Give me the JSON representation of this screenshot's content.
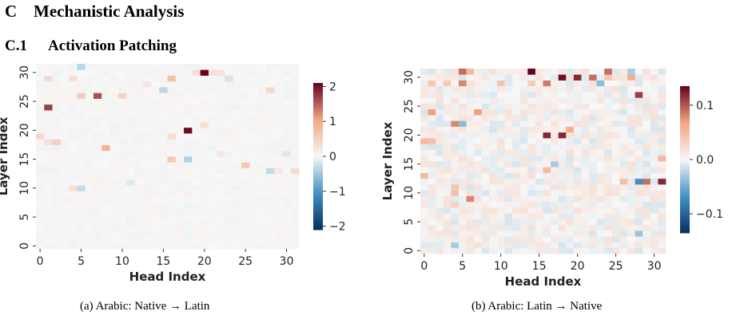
{
  "section": {
    "number": "C",
    "title": "Mechanistic Analysis"
  },
  "subsection": {
    "number": "C.1",
    "title": "Activation Patching"
  },
  "colors": {
    "neg_max": "#053061",
    "neg_mid": "#4393c3",
    "zero": "#f7f7f7",
    "pos_mid": "#f4a582",
    "pos_max": "#67001f"
  },
  "chart_data": [
    {
      "type": "heatmap",
      "caption": "(a) Arabic: Native → Latin",
      "xlabel": "Head Index",
      "ylabel": "Layer Index",
      "x_ticks": [
        "0",
        "5",
        "10",
        "15",
        "20",
        "25",
        "30"
      ],
      "y_ticks": [
        "0",
        "5",
        "10",
        "15",
        "20",
        "25",
        "30"
      ],
      "rows": 32,
      "cols": 32,
      "colorbar": {
        "range": [
          -2.1,
          2.1
        ],
        "ticks": [
          -2,
          -1,
          0,
          1,
          2
        ],
        "tick_labels": [
          "−2",
          "−1",
          "0",
          "1",
          "2"
        ]
      },
      "cells": [
        {
          "layer": 30,
          "head": 20,
          "value": 2.1
        },
        {
          "layer": 20,
          "head": 18,
          "value": 2.05
        },
        {
          "layer": 24,
          "head": 1,
          "value": 1.7
        },
        {
          "layer": 26,
          "head": 7,
          "value": 1.6
        },
        {
          "layer": 17,
          "head": 8,
          "value": 0.9
        },
        {
          "layer": 29,
          "head": 16,
          "value": 0.7
        },
        {
          "layer": 26,
          "head": 5,
          "value": 0.55
        },
        {
          "layer": 15,
          "head": 16,
          "value": 0.6
        },
        {
          "layer": 14,
          "head": 25,
          "value": 0.6
        },
        {
          "layer": 18,
          "head": 2,
          "value": 0.5
        },
        {
          "layer": 26,
          "head": 10,
          "value": 0.45
        },
        {
          "layer": 27,
          "head": 28,
          "value": 0.4
        },
        {
          "layer": 19,
          "head": 0,
          "value": 0.4
        },
        {
          "layer": 18,
          "head": 1,
          "value": 0.3
        },
        {
          "layer": 29,
          "head": 1,
          "value": 0.35
        },
        {
          "layer": 29,
          "head": 4,
          "value": 0.3
        },
        {
          "layer": 21,
          "head": 20,
          "value": 0.3
        },
        {
          "layer": 19,
          "head": 16,
          "value": 0.35
        },
        {
          "layer": 13,
          "head": 31,
          "value": 0.35
        },
        {
          "layer": 30,
          "head": 21,
          "value": 0.3
        },
        {
          "layer": 30,
          "head": 22,
          "value": 0.25
        },
        {
          "layer": 30,
          "head": 19,
          "value": 0.3
        },
        {
          "layer": 10,
          "head": 4,
          "value": 0.3
        },
        {
          "layer": 16,
          "head": 22,
          "value": 0.2
        },
        {
          "layer": 31,
          "head": 5,
          "value": -0.35
        },
        {
          "layer": 27,
          "head": 15,
          "value": -0.35
        },
        {
          "layer": 15,
          "head": 18,
          "value": -0.4
        },
        {
          "layer": 13,
          "head": 28,
          "value": -0.3
        },
        {
          "layer": 10,
          "head": 5,
          "value": -0.3
        },
        {
          "layer": 29,
          "head": 23,
          "value": -0.2
        },
        {
          "layer": 11,
          "head": 11,
          "value": -0.15
        },
        {
          "layer": 13,
          "head": 29,
          "value": 0.2
        },
        {
          "layer": 16,
          "head": 30,
          "value": -0.15
        },
        {
          "layer": 28,
          "head": 13,
          "value": 0.2
        }
      ]
    },
    {
      "type": "heatmap",
      "caption": "(b) Arabic: Latin → Native",
      "xlabel": "Head Index",
      "ylabel": "Layer Index",
      "x_ticks": [
        "0",
        "5",
        "10",
        "15",
        "20",
        "25",
        "30"
      ],
      "y_ticks": [
        "0",
        "5",
        "10",
        "15",
        "20",
        "25",
        "30"
      ],
      "rows": 32,
      "cols": 32,
      "colorbar": {
        "range": [
          -0.135,
          0.135
        ],
        "ticks": [
          -0.1,
          0.0,
          0.1
        ],
        "tick_labels": [
          "−0.1",
          "0.0",
          "0.1"
        ]
      },
      "cells": [
        {
          "layer": 31,
          "head": 14,
          "value": 0.135
        },
        {
          "layer": 30,
          "head": 18,
          "value": 0.13
        },
        {
          "layer": 30,
          "head": 20,
          "value": 0.12
        },
        {
          "layer": 20,
          "head": 16,
          "value": 0.12
        },
        {
          "layer": 20,
          "head": 18,
          "value": 0.12
        },
        {
          "layer": 12,
          "head": 31,
          "value": 0.12
        },
        {
          "layer": 27,
          "head": 28,
          "value": 0.11
        },
        {
          "layer": 31,
          "head": 5,
          "value": 0.09
        },
        {
          "layer": 31,
          "head": 24,
          "value": 0.09
        },
        {
          "layer": 30,
          "head": 22,
          "value": 0.09
        },
        {
          "layer": 29,
          "head": 16,
          "value": 0.085
        },
        {
          "layer": 29,
          "head": 5,
          "value": 0.08
        },
        {
          "layer": 22,
          "head": 4,
          "value": 0.08
        },
        {
          "layer": 24,
          "head": 1,
          "value": 0.07
        },
        {
          "layer": 24,
          "head": 7,
          "value": 0.07
        },
        {
          "layer": 9,
          "head": 6,
          "value": 0.08
        },
        {
          "layer": 12,
          "head": 29,
          "value": 0.09
        },
        {
          "layer": 12,
          "head": 28,
          "value": -0.07
        },
        {
          "layer": 30,
          "head": 27,
          "value": 0.06
        },
        {
          "layer": 21,
          "head": 19,
          "value": 0.06
        },
        {
          "layer": 31,
          "head": 6,
          "value": 0.05
        },
        {
          "layer": 19,
          "head": 0,
          "value": 0.05
        },
        {
          "layer": 19,
          "head": 1,
          "value": 0.045
        },
        {
          "layer": 29,
          "head": 1,
          "value": 0.04
        },
        {
          "layer": 29,
          "head": 3,
          "value": 0.035
        },
        {
          "layer": 29,
          "head": 10,
          "value": 0.04
        },
        {
          "layer": 29,
          "head": 14,
          "value": 0.035
        },
        {
          "layer": 30,
          "head": 24,
          "value": 0.04
        },
        {
          "layer": 22,
          "head": 5,
          "value": -0.04
        },
        {
          "layer": 29,
          "head": 23,
          "value": -0.04
        },
        {
          "layer": 14,
          "head": 16,
          "value": 0.05
        },
        {
          "layer": 12,
          "head": 26,
          "value": 0.045
        },
        {
          "layer": 16,
          "head": 31,
          "value": 0.05
        },
        {
          "layer": 10,
          "head": 4,
          "value": 0.045
        },
        {
          "layer": 11,
          "head": 4,
          "value": 0.04
        },
        {
          "layer": 13,
          "head": 0,
          "value": 0.05
        },
        {
          "layer": 8,
          "head": 4,
          "value": 0.03
        },
        {
          "layer": 15,
          "head": 17,
          "value": -0.03
        },
        {
          "layer": 3,
          "head": 28,
          "value": -0.035
        },
        {
          "layer": 1,
          "head": 4,
          "value": -0.03
        },
        {
          "layer": 31,
          "head": 27,
          "value": -0.03
        }
      ]
    }
  ]
}
